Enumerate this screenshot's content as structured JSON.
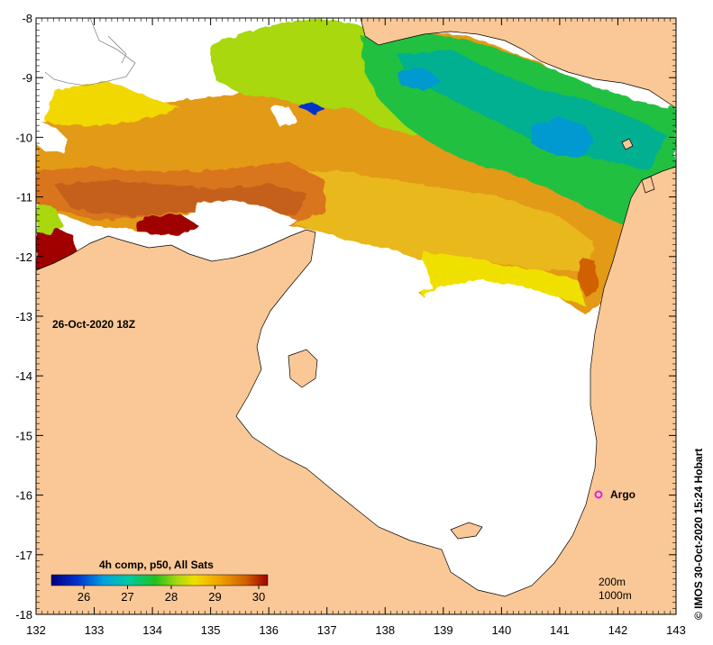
{
  "map": {
    "date_label": "26-Oct-2020 18Z",
    "credit": "© IMOS 30-Oct-2020 15:24 Hobart",
    "x_ticks": [
      "132",
      "133",
      "134",
      "135",
      "136",
      "137",
      "138",
      "139",
      "140",
      "141",
      "142",
      "143"
    ],
    "y_ticks": [
      "-8",
      "-9",
      "-10",
      "-11",
      "-12",
      "-13",
      "-14",
      "-15",
      "-16",
      "-17",
      "-18"
    ],
    "argo_label": "Argo",
    "isobath_labels": [
      "200m",
      "1000m"
    ],
    "land_color": "#fac896",
    "sea_missing_color": "#ffffff"
  },
  "colorbar": {
    "title": "4h comp, p50, All Sats",
    "ticks": [
      "26",
      "27",
      "28",
      "29",
      "30"
    ],
    "stops": [
      "#00007f",
      "#0033cc",
      "#00a0e0",
      "#00c8a0",
      "#22c020",
      "#a8d810",
      "#f0e000",
      "#f0a000",
      "#d06000",
      "#a00000"
    ]
  }
}
